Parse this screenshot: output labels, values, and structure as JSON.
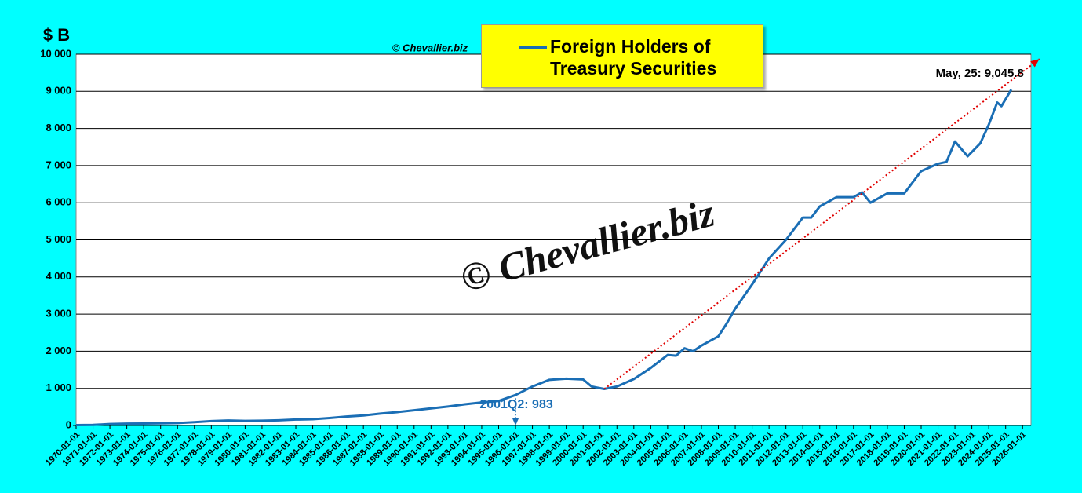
{
  "chart_data": {
    "type": "line",
    "y_unit_label": "$ B",
    "source": "© Chevallier.biz",
    "watermark": "© Chevallier.biz",
    "annotations": [
      {
        "text": "May, 25: 9,045.8"
      },
      {
        "text": "2001Q2: 983"
      }
    ],
    "xlim": [
      "1970-01-01",
      "2026-07-01"
    ],
    "xticks": [
      "1970-01-01",
      "1971-01-01",
      "1972-01-01",
      "1973-01-01",
      "1974-01-01",
      "1975-01-01",
      "1976-01-01",
      "1977-01-01",
      "1978-01-01",
      "1979-01-01",
      "1980-01-01",
      "1981-01-01",
      "1982-01-01",
      "1983-01-01",
      "1984-01-01",
      "1985-01-01",
      "1986-01-01",
      "1987-01-01",
      "1988-01-01",
      "1989-01-01",
      "1990-01-01",
      "1991-01-01",
      "1992-01-01",
      "1993-01-01",
      "1994-01-01",
      "1995-01-01",
      "1996-01-01",
      "1997-01-01",
      "1998-01-01",
      "1999-01-01",
      "2000-01-01",
      "2001-01-01",
      "2002-01-01",
      "2003-01-01",
      "2004-01-01",
      "2005-01-01",
      "2006-01-01",
      "2007-01-01",
      "2008-01-01",
      "2009-01-01",
      "2010-01-01",
      "2011-01-01",
      "2012-01-01",
      "2013-01-01",
      "2014-01-01",
      "2015-01-01",
      "2016-01-01",
      "2017-01-01",
      "2018-01-01",
      "2019-01-01",
      "2020-01-01",
      "2021-01-01",
      "2022-01-01",
      "2023-01-01",
      "2024-01-01",
      "2025-01-01",
      "2026-01-01"
    ],
    "ylim": [
      0,
      10000
    ],
    "yticks": [
      0,
      {
        "value": 1000,
        "label": "1 000"
      },
      {
        "value": 2000,
        "label": "2 000"
      },
      {
        "value": 3000,
        "label": "3 000"
      },
      {
        "value": 4000,
        "label": "4 000"
      },
      {
        "value": 5000,
        "label": "5 000"
      },
      {
        "value": 6000,
        "label": "6 000"
      },
      {
        "value": 7000,
        "label": "7 000"
      },
      {
        "value": 8000,
        "label": "8 000"
      },
      {
        "value": 9000,
        "label": "9 000"
      },
      {
        "value": 10000,
        "label": "10 000"
      }
    ],
    "grid": true,
    "series": [
      {
        "name": "Foreign Holders of Treasury Securities",
        "color": "#1a6eb5",
        "x": [
          "1970-01-01",
          "1971-01-01",
          "1972-01-01",
          "1973-01-01",
          "1974-01-01",
          "1975-01-01",
          "1976-01-01",
          "1977-01-01",
          "1978-01-01",
          "1979-01-01",
          "1980-01-01",
          "1981-01-01",
          "1982-01-01",
          "1983-01-01",
          "1984-01-01",
          "1985-01-01",
          "1986-01-01",
          "1987-01-01",
          "1988-01-01",
          "1989-01-01",
          "1990-01-01",
          "1991-01-01",
          "1992-01-01",
          "1993-01-01",
          "1994-01-01",
          "1995-01-01",
          "1996-01-01",
          "1997-01-01",
          "1998-01-01",
          "1999-01-01",
          "2000-01-01",
          "2000-07-01",
          "2001-04-01",
          "2002-01-01",
          "2003-01-01",
          "2004-01-01",
          "2005-01-01",
          "2005-07-01",
          "2006-01-01",
          "2006-07-01",
          "2007-01-01",
          "2008-01-01",
          "2008-07-01",
          "2009-01-01",
          "2010-01-01",
          "2011-01-01",
          "2012-01-01",
          "2013-01-01",
          "2013-07-01",
          "2014-01-01",
          "2015-01-01",
          "2016-01-01",
          "2016-07-01",
          "2017-01-01",
          "2018-01-01",
          "2019-01-01",
          "2020-01-01",
          "2021-01-01",
          "2021-07-01",
          "2022-01-01",
          "2022-10-01",
          "2023-07-01",
          "2024-01-01",
          "2024-07-01",
          "2024-10-01",
          "2025-05-01"
        ],
        "values": [
          10,
          15,
          40,
          50,
          52,
          58,
          65,
          90,
          120,
          135,
          125,
          130,
          140,
          160,
          170,
          200,
          240,
          270,
          320,
          360,
          410,
          460,
          510,
          570,
          620,
          660,
          820,
          1050,
          1230,
          1260,
          1240,
          1050,
          983,
          1050,
          1250,
          1550,
          1900,
          1880,
          2080,
          2000,
          2150,
          2400,
          2750,
          3150,
          3800,
          4500,
          5000,
          5600,
          5600,
          5900,
          6150,
          6150,
          6280,
          6000,
          6250,
          6250,
          6850,
          7050,
          7100,
          7650,
          7250,
          7600,
          8100,
          8700,
          8600,
          9045.8
        ]
      }
    ],
    "trend": {
      "color": "#e00000",
      "x": [
        "2001-04-01",
        "2027-01-01"
      ],
      "values": [
        983,
        9870
      ]
    }
  }
}
